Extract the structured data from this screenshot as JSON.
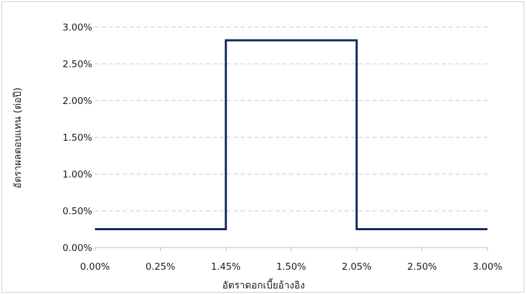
{
  "chart_data": {
    "type": "line",
    "title": "",
    "xlabel": "อัตราดอกเบี้ยอ้างอิง",
    "ylabel": "อัตราผลตอบแทน (ต่อปี)",
    "x_tick_labels": [
      "0.00%",
      "0.25%",
      "1.45%",
      "1.50%",
      "2.05%",
      "2.50%",
      "3.00%"
    ],
    "y_tick_labels": [
      "0.00%",
      "0.50%",
      "1.00%",
      "1.50%",
      "2.00%",
      "2.50%",
      "3.00%"
    ],
    "y_ticks": [
      0.0,
      0.5,
      1.0,
      1.5,
      2.0,
      2.5,
      3.0
    ],
    "ylim": [
      0.0,
      3.0
    ],
    "grid": true,
    "legend": "none",
    "series": [
      {
        "x": [
          "0.00%",
          "1.45%",
          "1.45%",
          "2.05%",
          "2.05%",
          "3.00%"
        ],
        "y": [
          0.25,
          0.25,
          2.82,
          2.82,
          0.25,
          0.25
        ]
      }
    ],
    "line_color": "#13275c"
  }
}
